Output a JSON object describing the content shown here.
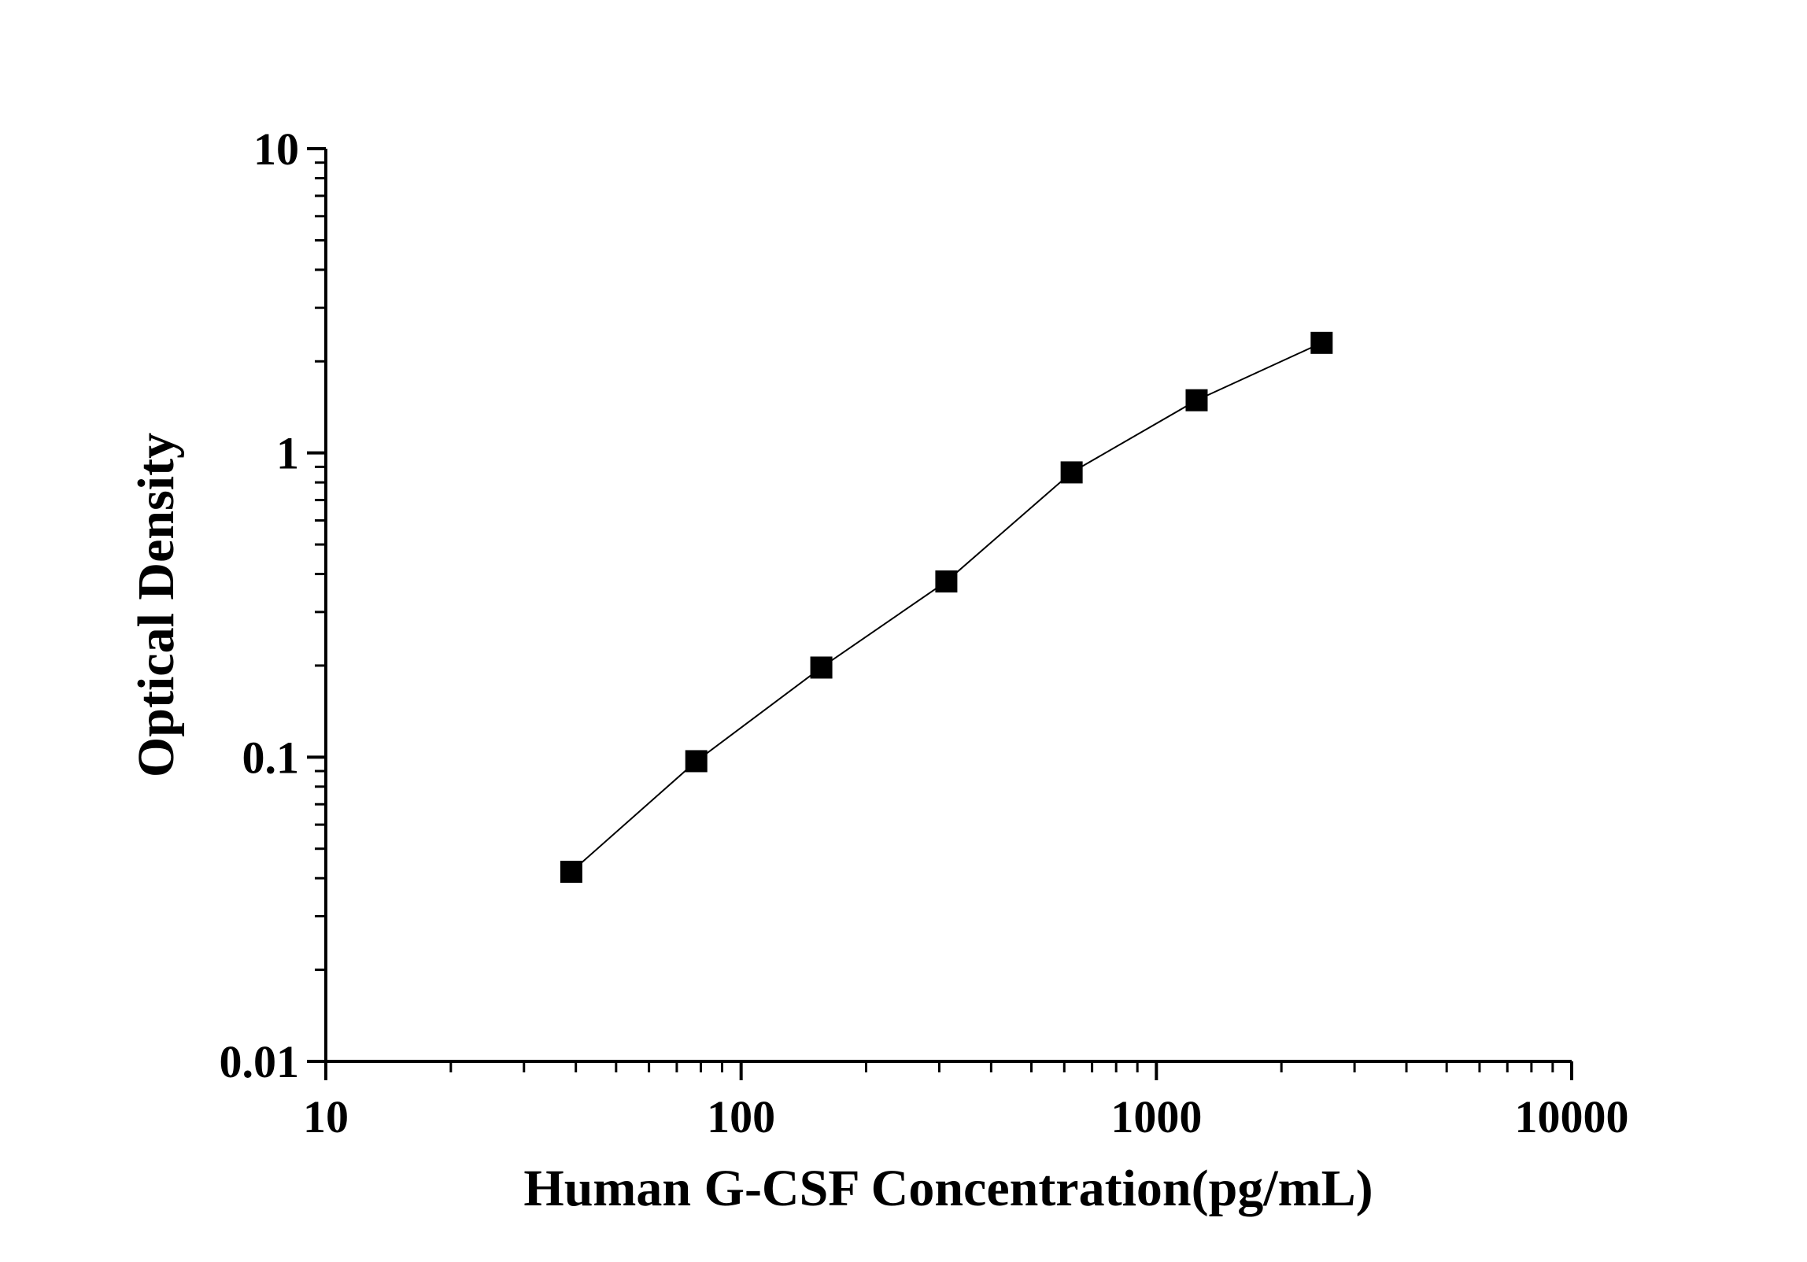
{
  "chart_data": {
    "type": "scatter",
    "x_label": "Human G-CSF Concentration(pg/mL)",
    "y_label": "Optical Density",
    "x_log": true,
    "y_log": true,
    "xlim": [
      10,
      10000
    ],
    "xticks": [
      10,
      100,
      1000,
      10000
    ],
    "ylim": [
      0.01,
      10
    ],
    "yticks": [
      0.01,
      0.1,
      1,
      10
    ],
    "series": [
      {
        "color": "#000000",
        "x": [
          39,
          78,
          156,
          312,
          625,
          1250,
          2500
        ],
        "values": [
          0.042,
          0.097,
          0.197,
          0.378,
          0.863,
          1.49,
          2.3
        ]
      }
    ]
  }
}
